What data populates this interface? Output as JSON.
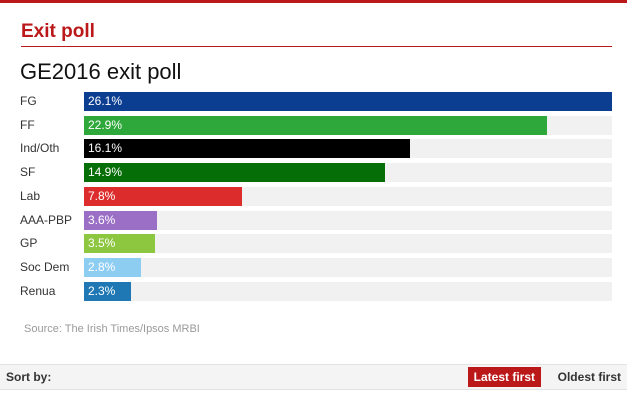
{
  "section": {
    "title": "Exit poll"
  },
  "sort": {
    "label": "Sort by:",
    "latest": "Latest first",
    "oldest": "Oldest first"
  },
  "colors": {
    "accent": "#bb1919"
  },
  "chart_data": {
    "type": "bar",
    "orientation": "horizontal",
    "title": "GE2016 exit poll",
    "source": "Source: The Irish Times/Ipsos MRBI",
    "xlim": [
      0,
      26.1
    ],
    "grid": false,
    "legend": "none",
    "bars": [
      {
        "label": "FG",
        "value": 26.1,
        "text": "26.1%",
        "color": "#0b3d91"
      },
      {
        "label": "FF",
        "value": 22.9,
        "text": "22.9%",
        "color": "#2ea83a"
      },
      {
        "label": "Ind/Oth",
        "value": 16.1,
        "text": "16.1%",
        "color": "#000000"
      },
      {
        "label": "SF",
        "value": 14.9,
        "text": "14.9%",
        "color": "#066e06"
      },
      {
        "label": "Lab",
        "value": 7.8,
        "text": "7.8%",
        "color": "#dc2c2c"
      },
      {
        "label": "AAA-PBP",
        "value": 3.6,
        "text": "3.6%",
        "color": "#9b6fc6"
      },
      {
        "label": "GP",
        "value": 3.5,
        "text": "3.5%",
        "color": "#8dc63f"
      },
      {
        "label": "Soc Dem",
        "value": 2.8,
        "text": "2.8%",
        "color": "#8ecdf2"
      },
      {
        "label": "Renua",
        "value": 2.3,
        "text": "2.3%",
        "color": "#1f78b4"
      }
    ]
  }
}
